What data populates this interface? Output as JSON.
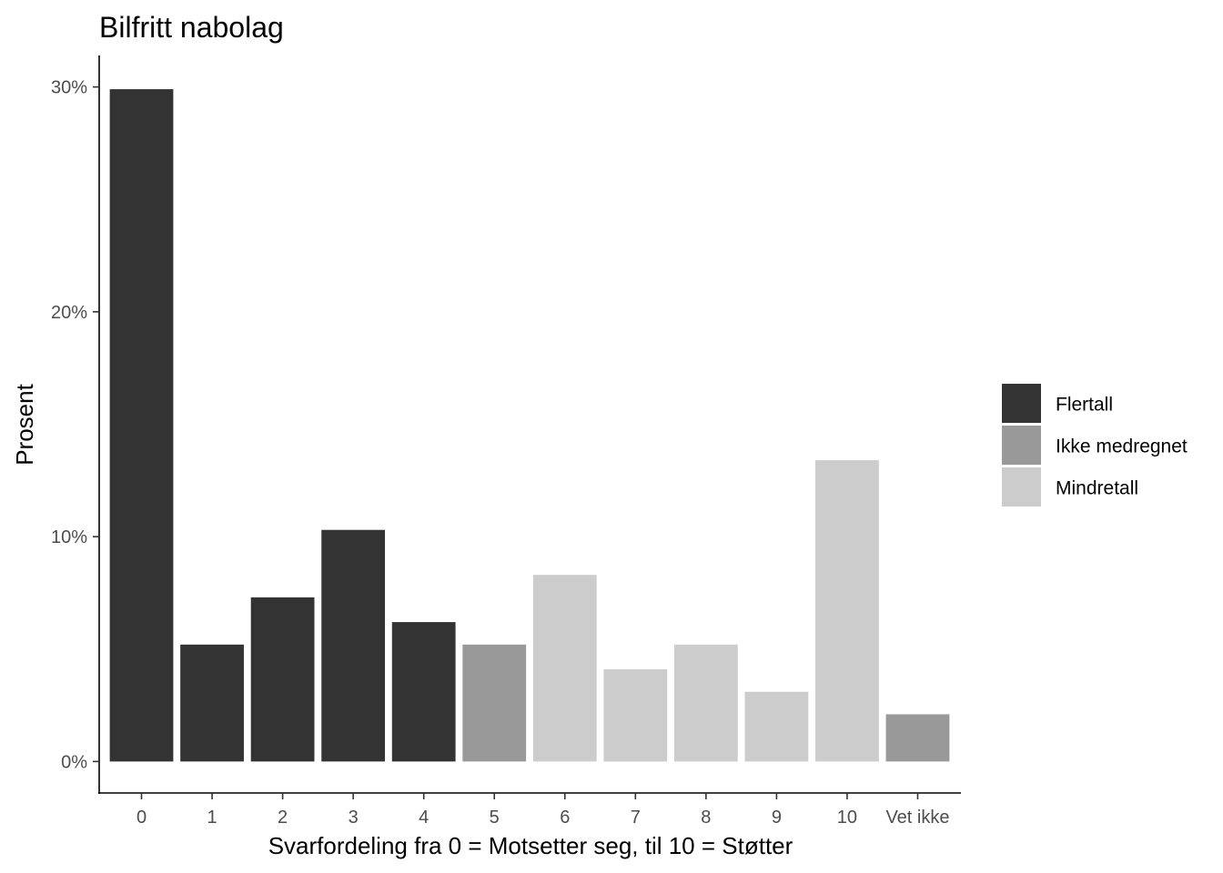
{
  "chart_data": {
    "type": "bar",
    "title": "Bilfritt nabolag",
    "xlabel": "Svarfordeling fra 0 = Motsetter seg, til 10 = Støtter",
    "ylabel": "Prosent",
    "categories": [
      "0",
      "1",
      "2",
      "3",
      "4",
      "5",
      "6",
      "7",
      "8",
      "9",
      "10",
      "Vet ikke"
    ],
    "values": [
      29.9,
      5.2,
      7.3,
      10.3,
      6.2,
      5.2,
      8.3,
      4.1,
      5.2,
      3.1,
      13.4,
      2.1
    ],
    "groups": [
      "Flertall",
      "Flertall",
      "Flertall",
      "Flertall",
      "Flertall",
      "Ikke medregnet",
      "Mindretall",
      "Mindretall",
      "Mindretall",
      "Mindretall",
      "Mindretall",
      "Ikke medregnet"
    ],
    "ylim": [
      -1.4,
      31.4
    ],
    "yticks": [
      0,
      10,
      20,
      30
    ],
    "yticklabels": [
      "0%",
      "10%",
      "20%",
      "30%"
    ],
    "grid": false,
    "legend": {
      "position": "right",
      "entries": [
        {
          "name": "Flertall",
          "color": "#333333"
        },
        {
          "name": "Ikke medregnet",
          "color": "#999999"
        },
        {
          "name": "Mindretall",
          "color": "#cccccc"
        }
      ]
    }
  }
}
